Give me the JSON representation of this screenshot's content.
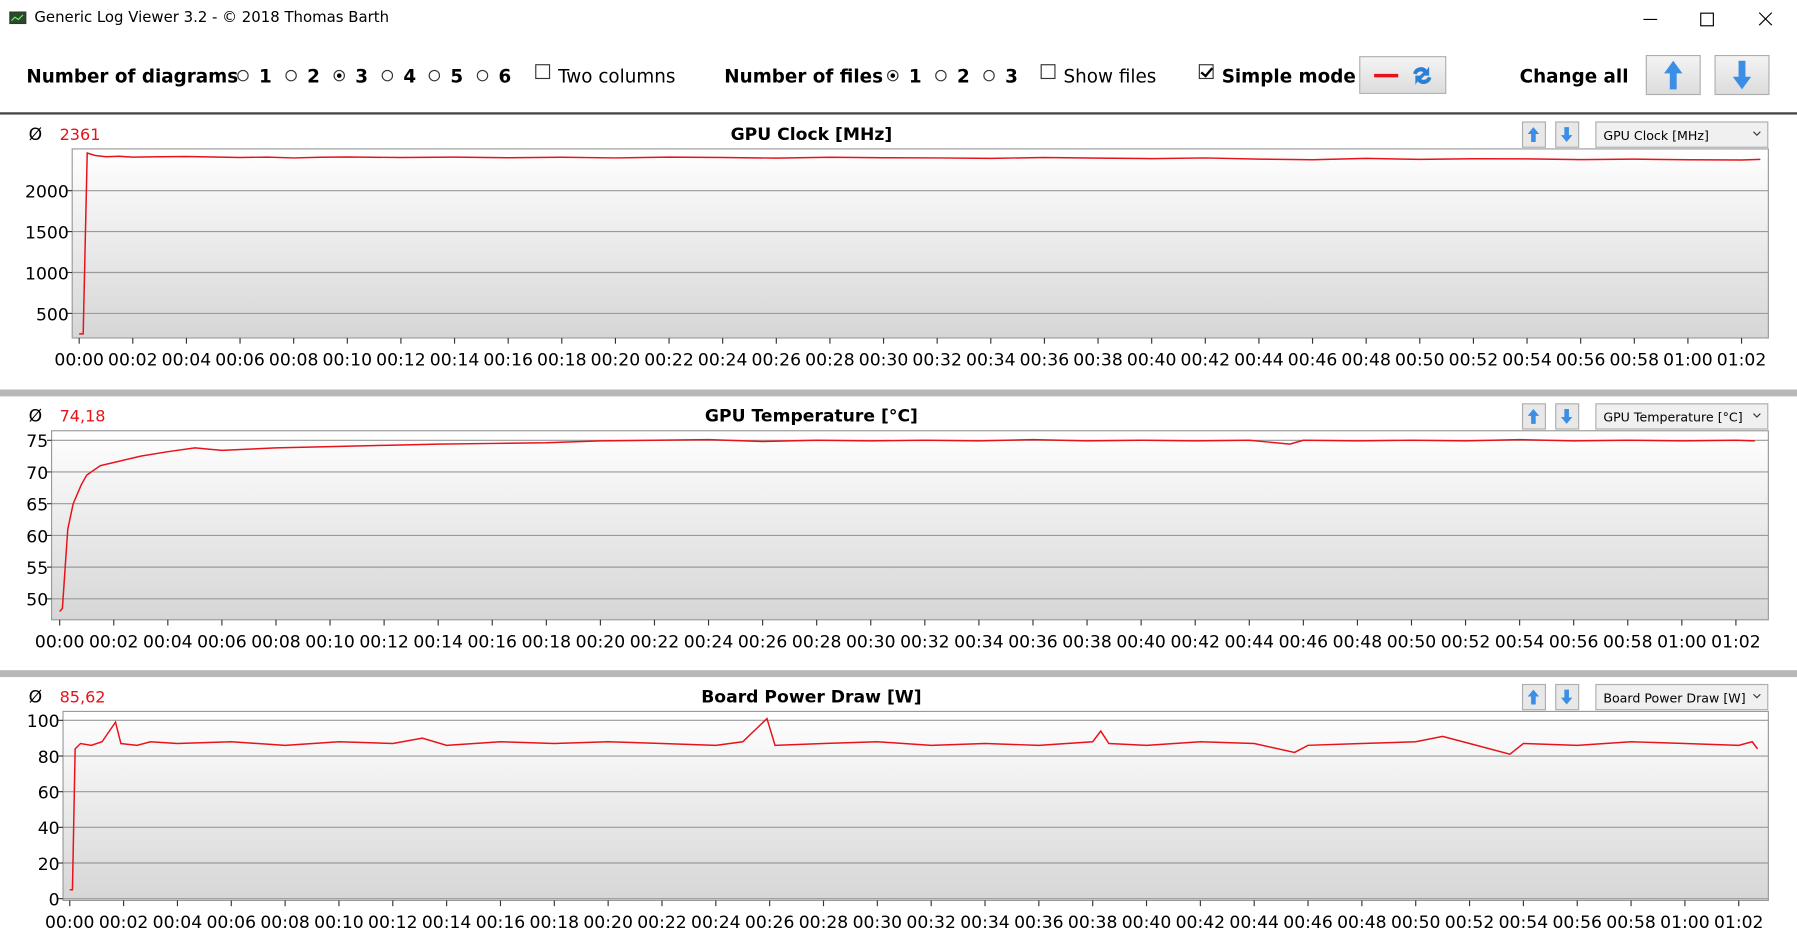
{
  "window": {
    "title": "Generic Log Viewer 3.2 - © 2018 Thomas Barth"
  },
  "toolbar": {
    "diagrams": {
      "label": "Number of diagrams",
      "options": [
        {
          "label": "1",
          "checked": false
        },
        {
          "label": "2",
          "checked": false
        },
        {
          "label": "3",
          "checked": true
        },
        {
          "label": "4",
          "checked": false
        },
        {
          "label": "5",
          "checked": false
        },
        {
          "label": "6",
          "checked": false
        }
      ]
    },
    "two_columns": {
      "label": "Two columns",
      "checked": false
    },
    "files": {
      "label": "Number of files",
      "options": [
        {
          "label": "1",
          "checked": true
        },
        {
          "label": "2",
          "checked": false
        },
        {
          "label": "3",
          "checked": false
        }
      ]
    },
    "show_files": {
      "label": "Show files",
      "checked": false
    },
    "simple_mode": {
      "label": "Simple mode",
      "checked": true
    },
    "change_all": "Change all"
  },
  "chart_data": [
    {
      "type": "line",
      "title": "GPU Clock [MHz]",
      "avg_symbol": "Ø",
      "average": "2361",
      "selector": "GPU Clock [MHz]",
      "x": [
        0,
        0.15,
        0.3,
        0.6,
        1,
        1.5,
        2,
        3,
        4,
        5,
        6,
        7,
        8,
        9,
        10,
        12,
        14,
        16,
        18,
        20,
        22,
        24,
        26,
        28,
        30,
        32,
        34,
        36,
        38,
        40,
        42,
        44,
        46,
        48,
        50,
        52,
        54,
        56,
        58,
        60,
        62,
        62.7
      ],
      "series": [
        {
          "color": "#e8121a",
          "values": [
            250,
            250,
            2460,
            2430,
            2415,
            2420,
            2410,
            2415,
            2418,
            2412,
            2405,
            2410,
            2400,
            2408,
            2412,
            2405,
            2410,
            2402,
            2408,
            2400,
            2410,
            2405,
            2398,
            2408,
            2402,
            2400,
            2395,
            2405,
            2398,
            2392,
            2400,
            2385,
            2378,
            2395,
            2382,
            2390,
            2388,
            2380,
            2385,
            2378,
            2375,
            2382
          ]
        }
      ],
      "xlim": [
        -0.26,
        63
      ],
      "ylim": [
        200,
        2510
      ],
      "yticks": [
        500,
        1000,
        1500,
        2000
      ],
      "grid": true,
      "xticks": [
        {
          "value": 0,
          "label": "00:00"
        },
        {
          "value": 2,
          "label": "00:02"
        },
        {
          "value": 4,
          "label": "00:04"
        },
        {
          "value": 6,
          "label": "00:06"
        },
        {
          "value": 8,
          "label": "00:08"
        },
        {
          "value": 10,
          "label": "00:10"
        },
        {
          "value": 12,
          "label": "00:12"
        },
        {
          "value": 14,
          "label": "00:14"
        },
        {
          "value": 16,
          "label": "00:16"
        },
        {
          "value": 18,
          "label": "00:18"
        },
        {
          "value": 20,
          "label": "00:20"
        },
        {
          "value": 22,
          "label": "00:22"
        },
        {
          "value": 24,
          "label": "00:24"
        },
        {
          "value": 26,
          "label": "00:26"
        },
        {
          "value": 28,
          "label": "00:28"
        },
        {
          "value": 30,
          "label": "00:30"
        },
        {
          "value": 32,
          "label": "00:32"
        },
        {
          "value": 34,
          "label": "00:34"
        },
        {
          "value": 36,
          "label": "00:36"
        },
        {
          "value": 38,
          "label": "00:38"
        },
        {
          "value": 40,
          "label": "00:40"
        },
        {
          "value": 42,
          "label": "00:42"
        },
        {
          "value": 44,
          "label": "00:44"
        },
        {
          "value": 46,
          "label": "00:46"
        },
        {
          "value": 48,
          "label": "00:48"
        },
        {
          "value": 50,
          "label": "00:50"
        },
        {
          "value": 52,
          "label": "00:52"
        },
        {
          "value": 54,
          "label": "00:54"
        },
        {
          "value": 56,
          "label": "00:56"
        },
        {
          "value": 58,
          "label": "00:58"
        },
        {
          "value": 60,
          "label": "01:00"
        },
        {
          "value": 62,
          "label": "01:02"
        }
      ]
    },
    {
      "type": "line",
      "title": "GPU Temperature [°C]",
      "avg_symbol": "Ø",
      "average": "74,18",
      "selector": "GPU Temperature [°C]",
      "x": [
        0,
        0.1,
        0.3,
        0.5,
        0.8,
        1,
        1.5,
        2,
        3,
        4,
        5,
        6,
        7,
        8,
        10,
        12,
        14,
        16,
        18,
        20,
        22,
        24,
        26,
        28,
        30,
        32,
        34,
        36,
        38,
        40,
        42,
        44,
        45.5,
        46,
        48,
        50,
        52,
        54,
        56,
        58,
        60,
        62,
        62.7
      ],
      "series": [
        {
          "color": "#e8121a",
          "values": [
            48,
            48.5,
            61,
            65,
            68,
            69.5,
            71,
            71.5,
            72.5,
            73.2,
            73.8,
            73.4,
            73.6,
            73.8,
            74,
            74.2,
            74.4,
            74.5,
            74.6,
            74.9,
            75,
            75.1,
            74.8,
            75,
            74.9,
            75,
            74.9,
            75.1,
            74.9,
            75,
            74.9,
            75,
            74.4,
            75,
            74.9,
            75,
            74.9,
            75.1,
            74.9,
            75,
            74.9,
            75,
            74.9
          ]
        }
      ],
      "xlim": [
        -0.3,
        63.2
      ],
      "ylim": [
        46.7,
        76.5
      ],
      "yticks": [
        50,
        55,
        60,
        65,
        70,
        75
      ],
      "grid": true,
      "xticks": [
        {
          "value": 0,
          "label": "00:00"
        },
        {
          "value": 2,
          "label": "00:02"
        },
        {
          "value": 4,
          "label": "00:04"
        },
        {
          "value": 6,
          "label": "00:06"
        },
        {
          "value": 8,
          "label": "00:08"
        },
        {
          "value": 10,
          "label": "00:10"
        },
        {
          "value": 12,
          "label": "00:12"
        },
        {
          "value": 14,
          "label": "00:14"
        },
        {
          "value": 16,
          "label": "00:16"
        },
        {
          "value": 18,
          "label": "00:18"
        },
        {
          "value": 20,
          "label": "00:20"
        },
        {
          "value": 22,
          "label": "00:22"
        },
        {
          "value": 24,
          "label": "00:24"
        },
        {
          "value": 26,
          "label": "00:26"
        },
        {
          "value": 28,
          "label": "00:28"
        },
        {
          "value": 30,
          "label": "00:30"
        },
        {
          "value": 32,
          "label": "00:32"
        },
        {
          "value": 34,
          "label": "00:34"
        },
        {
          "value": 36,
          "label": "00:36"
        },
        {
          "value": 38,
          "label": "00:38"
        },
        {
          "value": 40,
          "label": "00:40"
        },
        {
          "value": 42,
          "label": "00:42"
        },
        {
          "value": 44,
          "label": "00:44"
        },
        {
          "value": 46,
          "label": "00:46"
        },
        {
          "value": 48,
          "label": "00:48"
        },
        {
          "value": 50,
          "label": "00:50"
        },
        {
          "value": 52,
          "label": "00:52"
        },
        {
          "value": 54,
          "label": "00:54"
        },
        {
          "value": 56,
          "label": "00:56"
        },
        {
          "value": 58,
          "label": "00:58"
        },
        {
          "value": 60,
          "label": "01:00"
        },
        {
          "value": 62,
          "label": "01:02"
        }
      ]
    },
    {
      "type": "line",
      "title": "Board Power Draw [W]",
      "avg_symbol": "Ø",
      "average": "85,62",
      "selector": "Board Power Draw [W]",
      "x": [
        0,
        0.1,
        0.2,
        0.4,
        0.8,
        1.2,
        1.7,
        1.9,
        2.5,
        3,
        4,
        6,
        8,
        10,
        12,
        13.1,
        14,
        16,
        18,
        20,
        22,
        24,
        25,
        25.9,
        26.2,
        28,
        30,
        32,
        34,
        36,
        38,
        38.3,
        38.6,
        40,
        42,
        44,
        45.5,
        46,
        48,
        50,
        51,
        52,
        53.5,
        54,
        56,
        58,
        60,
        62,
        62.5,
        62.7
      ],
      "series": [
        {
          "color": "#e8121a",
          "values": [
            5,
            5,
            84,
            87,
            86,
            88,
            99,
            87,
            86,
            88,
            87,
            88,
            86,
            88,
            87,
            90,
            86,
            88,
            87,
            88,
            87,
            86,
            88,
            101,
            86,
            87,
            88,
            86,
            87,
            86,
            88,
            94,
            87,
            86,
            88,
            87,
            82,
            86,
            87,
            88,
            91,
            87,
            81,
            87,
            86,
            88,
            87,
            86,
            88,
            84
          ]
        }
      ],
      "xlim": [
        -0.25,
        63.1
      ],
      "ylim": [
        -1,
        105
      ],
      "yticks": [
        0,
        20,
        40,
        60,
        80,
        100
      ],
      "grid": true,
      "xticks": [
        {
          "value": 0,
          "label": "00:00"
        },
        {
          "value": 2,
          "label": "00:02"
        },
        {
          "value": 4,
          "label": "00:04"
        },
        {
          "value": 6,
          "label": "00:06"
        },
        {
          "value": 8,
          "label": "00:08"
        },
        {
          "value": 10,
          "label": "00:10"
        },
        {
          "value": 12,
          "label": "00:12"
        },
        {
          "value": 14,
          "label": "00:14"
        },
        {
          "value": 16,
          "label": "00:16"
        },
        {
          "value": 18,
          "label": "00:18"
        },
        {
          "value": 20,
          "label": "00:20"
        },
        {
          "value": 22,
          "label": "00:22"
        },
        {
          "value": 24,
          "label": "00:24"
        },
        {
          "value": 26,
          "label": "00:26"
        },
        {
          "value": 28,
          "label": "00:28"
        },
        {
          "value": 30,
          "label": "00:30"
        },
        {
          "value": 32,
          "label": "00:32"
        },
        {
          "value": 34,
          "label": "00:34"
        },
        {
          "value": 36,
          "label": "00:36"
        },
        {
          "value": 38,
          "label": "00:38"
        },
        {
          "value": 40,
          "label": "00:40"
        },
        {
          "value": 42,
          "label": "00:42"
        },
        {
          "value": 44,
          "label": "00:44"
        },
        {
          "value": 46,
          "label": "00:46"
        },
        {
          "value": 48,
          "label": "00:48"
        },
        {
          "value": 50,
          "label": "00:50"
        },
        {
          "value": 52,
          "label": "00:52"
        },
        {
          "value": 54,
          "label": "00:54"
        },
        {
          "value": 56,
          "label": "00:56"
        },
        {
          "value": 58,
          "label": "00:58"
        },
        {
          "value": 60,
          "label": "01:00"
        },
        {
          "value": 62,
          "label": "01:02"
        }
      ]
    }
  ]
}
